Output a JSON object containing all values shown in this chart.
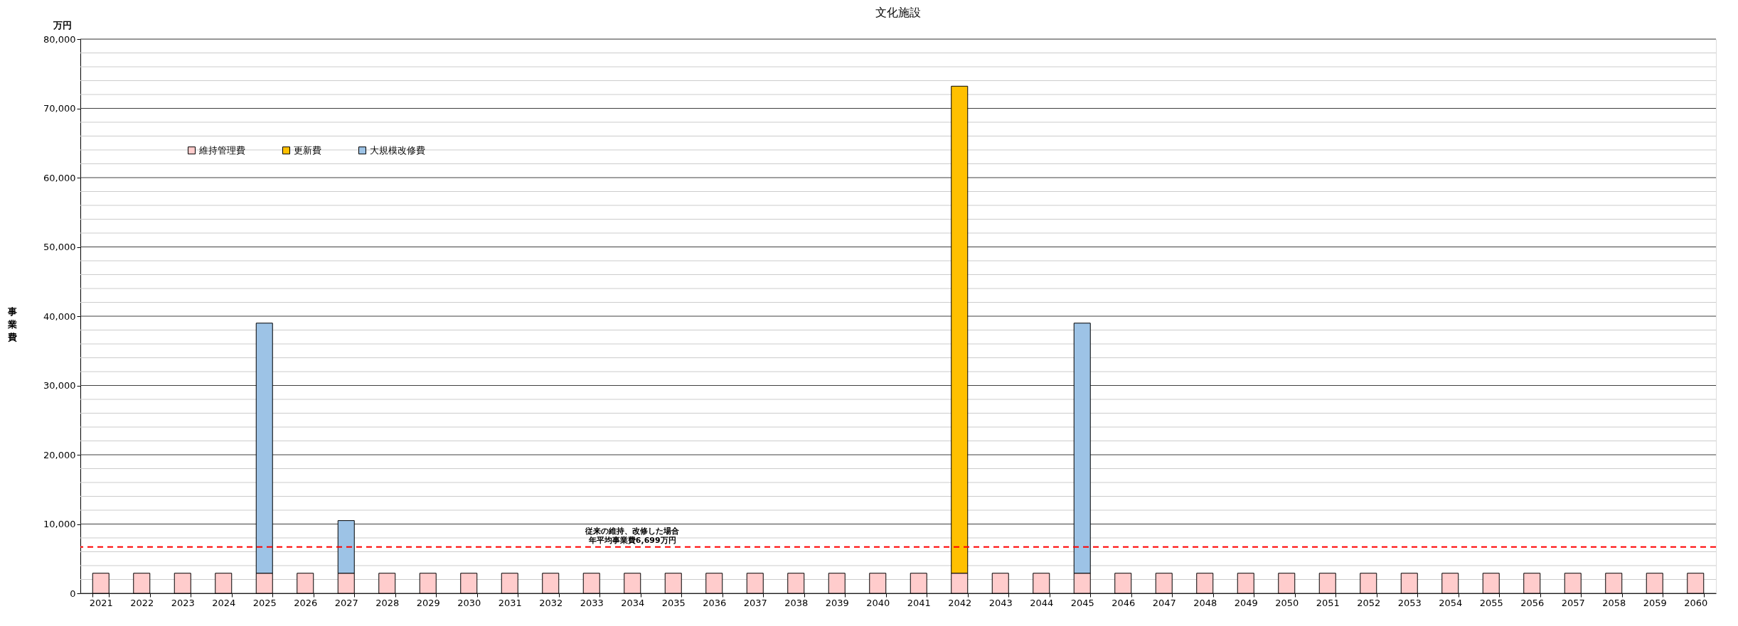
{
  "chart_data": {
    "type": "bar",
    "title": "文化施設",
    "ylabel": "事業費",
    "stacked": true,
    "categories": [
      "2021",
      "2022",
      "2023",
      "2024",
      "2025",
      "2026",
      "2027",
      "2028",
      "2029",
      "2030",
      "2031",
      "2032",
      "2033",
      "2034",
      "2035",
      "2036",
      "2037",
      "2038",
      "2039",
      "2040",
      "2041",
      "2042",
      "2043",
      "2044",
      "2045",
      "2046",
      "2047",
      "2048",
      "2049",
      "2050",
      "2051",
      "2052",
      "2053",
      "2054",
      "2055",
      "2056",
      "2057",
      "2058",
      "2059",
      "2060"
    ],
    "series": [
      {
        "name": "維持管理費",
        "color": "#ffcccc",
        "values": [
          2900,
          2900,
          2900,
          2900,
          2900,
          2900,
          2900,
          2900,
          2900,
          2900,
          2900,
          2900,
          2900,
          2900,
          2900,
          2900,
          2900,
          2900,
          2900,
          2900,
          2900,
          2900,
          2900,
          2900,
          2900,
          2900,
          2900,
          2900,
          2900,
          2900,
          2900,
          2900,
          2900,
          2900,
          2900,
          2900,
          2900,
          2900,
          2900,
          2900
        ]
      },
      {
        "name": "更新費",
        "color": "#ffc000",
        "values": [
          null,
          null,
          null,
          null,
          null,
          null,
          null,
          null,
          null,
          null,
          null,
          null,
          null,
          null,
          null,
          null,
          null,
          null,
          null,
          null,
          null,
          70300,
          null,
          null,
          null,
          null,
          null,
          null,
          null,
          null,
          null,
          null,
          null,
          null,
          null,
          null,
          null,
          null,
          null,
          null
        ]
      },
      {
        "name": "大規模改修費",
        "color": "#9dc3e6",
        "values": [
          null,
          null,
          null,
          null,
          36100,
          null,
          7600,
          null,
          null,
          null,
          null,
          null,
          null,
          null,
          null,
          null,
          null,
          null,
          null,
          null,
          null,
          null,
          null,
          null,
          36100,
          null,
          null,
          null,
          null,
          null,
          null,
          null,
          null,
          null,
          null,
          null,
          null,
          null,
          null,
          null
        ]
      }
    ],
    "ylim": [
      0,
      80000
    ],
    "yticks": [
      0,
      {
        "value": 2000,
        "label": null
      },
      {
        "value": 4000,
        "label": null
      },
      {
        "value": 6000,
        "label": null
      },
      {
        "value": 8000,
        "label": null
      },
      {
        "value": 10000,
        "label": "10,000"
      },
      {
        "value": 12000,
        "label": null
      },
      {
        "value": 14000,
        "label": null
      },
      {
        "value": 16000,
        "label": null
      },
      {
        "value": 18000,
        "label": null
      },
      {
        "value": 20000,
        "label": "20,000"
      },
      {
        "value": 22000,
        "label": null
      },
      {
        "value": 24000,
        "label": null
      },
      {
        "value": 26000,
        "label": null
      },
      {
        "value": 28000,
        "label": null
      },
      {
        "value": 30000,
        "label": "30,000"
      },
      {
        "value": 32000,
        "label": null
      },
      {
        "value": 34000,
        "label": null
      },
      {
        "value": 36000,
        "label": null
      },
      {
        "value": 38000,
        "label": null
      },
      {
        "value": 40000,
        "label": "40,000"
      },
      {
        "value": 42000,
        "label": null
      },
      {
        "value": 44000,
        "label": null
      },
      {
        "value": 46000,
        "label": null
      },
      {
        "value": 48000,
        "label": null
      },
      {
        "value": 50000,
        "label": "50,000"
      },
      {
        "value": 52000,
        "label": null
      },
      {
        "value": 54000,
        "label": null
      },
      {
        "value": 56000,
        "label": null
      },
      {
        "value": 58000,
        "label": null
      },
      {
        "value": 60000,
        "label": "60,000"
      },
      {
        "value": 62000,
        "label": null
      },
      {
        "value": 64000,
        "label": null
      },
      {
        "value": 66000,
        "label": null
      },
      {
        "value": 68000,
        "label": null
      },
      {
        "value": 70000,
        "label": "70,000"
      },
      {
        "value": 72000,
        "label": null
      },
      {
        "value": 74000,
        "label": null
      },
      {
        "value": 76000,
        "label": null
      },
      {
        "value": 78000,
        "label": null
      },
      {
        "value": 80000,
        "label": "80,000"
      }
    ],
    "grid": "y",
    "legend": "top left",
    "ref_lines": [
      {
        "axis": "y",
        "value": 6699,
        "label": "従来の維持、改修した場合年平均事業費6,699万円",
        "color": "#ff0000",
        "line_style": "dashed"
      }
    ],
    "annotations": [
      "万円"
    ]
  }
}
